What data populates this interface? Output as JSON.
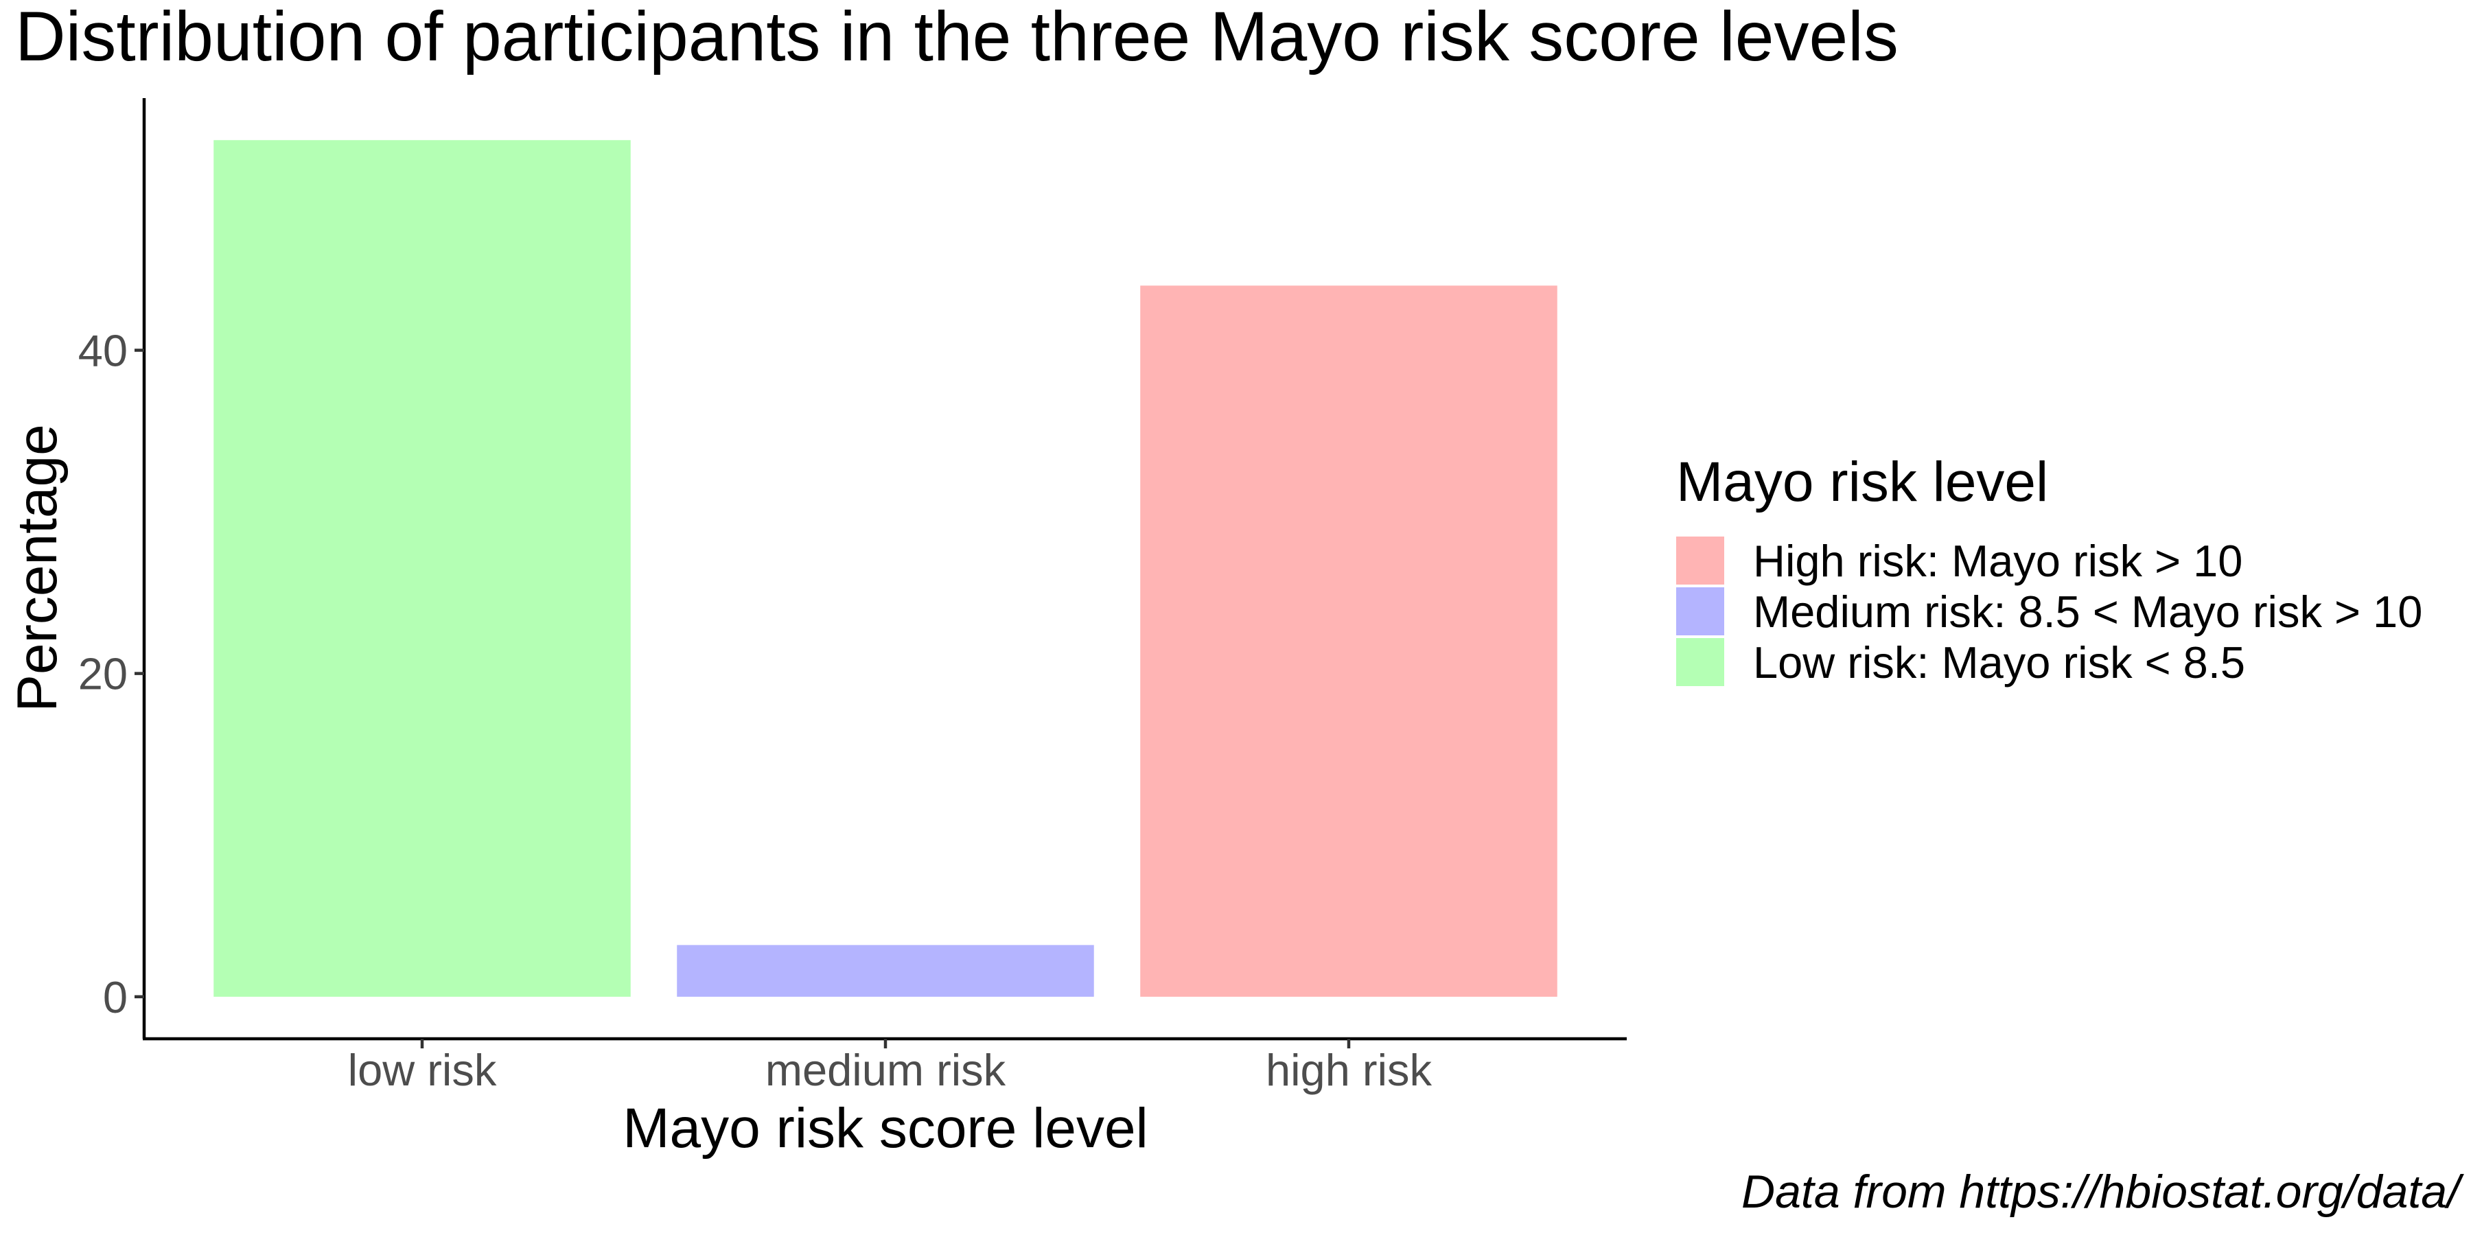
{
  "chart_data": {
    "type": "bar",
    "title": "Distribution of participants in the three Mayo risk score levels",
    "xlabel": "Mayo risk score level",
    "ylabel": "Percentage",
    "categories": [
      "low risk",
      "medium risk",
      "high risk"
    ],
    "values": [
      53.0,
      3.2,
      44.0
    ],
    "colors": [
      "#b4ffb4",
      "#b4b4ff",
      "#ffb4b4"
    ],
    "ylim": [
      -2.6,
      55.6
    ],
    "yticks": [
      0,
      20,
      40
    ],
    "grid": false,
    "legend": {
      "title": "Mayo risk level",
      "placement": "right",
      "items": [
        {
          "label": "High risk: Mayo risk > 10",
          "color": "#ffb4b4"
        },
        {
          "label": "Medium risk: 8.5 < Mayo risk > 10",
          "color": "#b4b4ff"
        },
        {
          "label": "Low risk: Mayo risk < 8.5",
          "color": "#b4ffb4"
        }
      ]
    },
    "caption": "Data from https://hbiostat.org/data/"
  }
}
